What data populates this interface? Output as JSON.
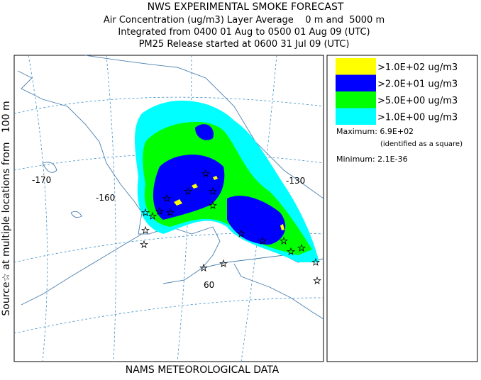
{
  "header": {
    "title": "NWS EXPERIMENTAL SMOKE FORECAST",
    "lines": [
      "Air Concentration (ug/m3) Layer Average    0 m and  5000 m",
      "Integrated from 0400 01 Aug to 0500 01 Aug 09 (UTC)",
      "PM25 Release started at 0600 31 Jul 09 (UTC)"
    ]
  },
  "side_label": "Source☆ at multiple locations from   100 m",
  "footer": "NAMS METEOROLOGICAL DATA",
  "legend": {
    "entries": [
      {
        "label": ">1.0E+02 ug/m3",
        "color": "#ffff00"
      },
      {
        "label": ">2.0E+01 ug/m3",
        "color": "#0000ff"
      },
      {
        "label": ">5.0E+00 ug/m3",
        "color": "#00ff00"
      },
      {
        "label": ">1.0E+00 ug/m3",
        "color": "#00ffff"
      }
    ],
    "maximum": "Maximum: 6.9E+02",
    "maximum_note": "(identified as a square)",
    "minimum": "Minimum: 2.1E-36"
  },
  "map": {
    "labels": [
      "-170",
      "-160",
      "-130",
      "60"
    ]
  }
}
